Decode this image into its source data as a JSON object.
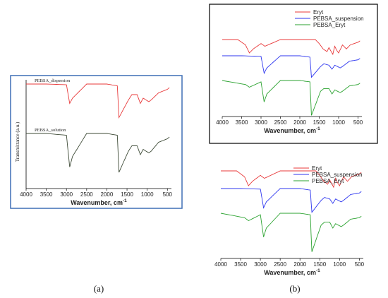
{
  "figure_labels": {
    "a": "(a)",
    "b": "(b)"
  },
  "colors": {
    "panel_a_border": "#3f6fb5",
    "red": "#e8393a",
    "blue": "#2d36ef",
    "green": "#2aa22f",
    "olive": "#3d4a36",
    "frame": "#000000"
  },
  "chart_data": [
    {
      "type": "line",
      "panel": "a",
      "xlabel": "Wavenumber, cm",
      "xlabel_sup": "-1",
      "ylabel": "Transmittance (a.u.)",
      "xlim": [
        4000,
        400
      ],
      "xticks": [
        "4000",
        "3500",
        "3000",
        "2500",
        "2000",
        "1500",
        "1000",
        "500"
      ],
      "grid": false,
      "legend": "inline",
      "series": [
        {
          "name": "PEBSA_dispersion",
          "color": "#e8393a",
          "offset": 1.0,
          "x": [
            4000,
            3500,
            3000,
            2920,
            2850,
            2500,
            2000,
            1740,
            1700,
            1465,
            1380,
            1250,
            1170,
            1100,
            960,
            900,
            720,
            500,
            450
          ],
          "y": [
            0,
            0,
            0.02,
            0.55,
            0.4,
            0,
            0,
            0.05,
            0.95,
            0.45,
            0.3,
            0.3,
            0.55,
            0.4,
            0.5,
            0.45,
            0.25,
            0.15,
            0.1
          ]
        },
        {
          "name": "PEBSA_solution",
          "color": "#3d4a36",
          "offset": 0.0,
          "x": [
            4000,
            3500,
            3000,
            2920,
            2850,
            2500,
            2000,
            1740,
            1700,
            1465,
            1380,
            1250,
            1170,
            1100,
            960,
            900,
            720,
            500,
            450
          ],
          "y": [
            0,
            0,
            0.05,
            0.95,
            0.65,
            0,
            0,
            0.05,
            1.1,
            0.5,
            0.35,
            0.35,
            0.6,
            0.45,
            0.55,
            0.5,
            0.25,
            0.15,
            0.1
          ]
        }
      ]
    },
    {
      "type": "line",
      "panel": "b-top",
      "xlabel": "Wavenumber, cm",
      "xlabel_sup": "-1",
      "xlim": [
        4000,
        400
      ],
      "xticks": [
        "4000",
        "3500",
        "3000",
        "2500",
        "2000",
        "1500",
        "1000",
        "500"
      ],
      "grid": false,
      "legend": "top-right",
      "series": [
        {
          "name": "Eryt",
          "color": "#e8393a",
          "offset": 2.0,
          "x": [
            4000,
            3600,
            3400,
            3300,
            3200,
            3000,
            2900,
            2500,
            2000,
            1600,
            1500,
            1400,
            1300,
            1250,
            1150,
            1100,
            1050,
            1000,
            900,
            800,
            700,
            500,
            450
          ],
          "y": [
            0,
            0,
            0.2,
            0.5,
            0.35,
            0.15,
            0.25,
            0,
            0,
            0,
            0.15,
            0.35,
            0.45,
            0.3,
            0.55,
            0.25,
            0.4,
            0.5,
            0.2,
            0.35,
            0.2,
            0.1,
            0.05
          ]
        },
        {
          "name": "PEBSA_suspension",
          "color": "#2d36ef",
          "offset": 1.0,
          "x": [
            4000,
            3500,
            3000,
            2920,
            2850,
            2500,
            2000,
            1740,
            1700,
            1465,
            1380,
            1250,
            1170,
            1100,
            960,
            900,
            720,
            500,
            450
          ],
          "y": [
            0,
            0,
            0.02,
            0.65,
            0.45,
            0,
            0,
            0.05,
            0.8,
            0.4,
            0.3,
            0.35,
            0.5,
            0.35,
            0.45,
            0.4,
            0.2,
            0.15,
            0.1
          ]
        },
        {
          "name": "PEBSA_Eryt",
          "color": "#2aa22f",
          "offset": 0.0,
          "x": [
            4000,
            3400,
            3300,
            3000,
            2920,
            2850,
            2500,
            2000,
            1740,
            1700,
            1465,
            1380,
            1250,
            1170,
            1100,
            960,
            900,
            720,
            500,
            450
          ],
          "y": [
            0,
            0.15,
            0.25,
            0.05,
            0.8,
            0.5,
            0,
            0,
            0.05,
            1.3,
            0.4,
            0.3,
            0.3,
            0.5,
            0.35,
            0.45,
            0.4,
            0.2,
            0.15,
            0.1
          ]
        }
      ]
    },
    {
      "type": "line",
      "panel": "b-bottom",
      "xlabel": "Wavenumber, cm",
      "xlabel_sup": "-1",
      "xlim": [
        4000,
        400
      ],
      "xticks": [
        "4000",
        "3500",
        "3000",
        "2500",
        "2000",
        "1500",
        "1000",
        "500"
      ],
      "grid": false,
      "legend": "top-right",
      "series": [
        {
          "name": "Eryt",
          "color": "#e8393a",
          "offset": 2.0,
          "x": [
            4000,
            3600,
            3400,
            3300,
            3200,
            3000,
            2900,
            2500,
            2000,
            1600,
            1500,
            1400,
            1300,
            1250,
            1150,
            1100,
            1050,
            1000,
            900,
            800,
            700,
            500,
            450
          ],
          "y": [
            0,
            0,
            0.2,
            0.5,
            0.35,
            0.15,
            0.25,
            0,
            0,
            0,
            0.15,
            0.35,
            0.45,
            0.3,
            0.55,
            0.25,
            0.4,
            0.5,
            0.2,
            0.35,
            0.2,
            0.1,
            0.05
          ]
        },
        {
          "name": "PEBSA_suspension",
          "color": "#2d36ef",
          "offset": 1.0,
          "x": [
            4000,
            3500,
            3000,
            2920,
            2850,
            2500,
            2000,
            1740,
            1700,
            1465,
            1380,
            1250,
            1170,
            1100,
            960,
            900,
            720,
            500,
            450
          ],
          "y": [
            0,
            0,
            0.02,
            0.65,
            0.45,
            0,
            0,
            0.05,
            0.8,
            0.4,
            0.3,
            0.35,
            0.5,
            0.35,
            0.45,
            0.4,
            0.2,
            0.15,
            0.1
          ]
        },
        {
          "name": "PEBSA_Eryt",
          "color": "#2aa22f",
          "offset": 0.0,
          "x": [
            4000,
            3400,
            3300,
            3000,
            2920,
            2850,
            2500,
            2000,
            1740,
            1700,
            1465,
            1380,
            1250,
            1170,
            1100,
            960,
            900,
            720,
            500,
            450
          ],
          "y": [
            0,
            0.15,
            0.25,
            0.05,
            0.8,
            0.5,
            0,
            0,
            0.05,
            1.3,
            0.4,
            0.3,
            0.3,
            0.5,
            0.35,
            0.45,
            0.4,
            0.2,
            0.15,
            0.1
          ]
        }
      ]
    }
  ]
}
